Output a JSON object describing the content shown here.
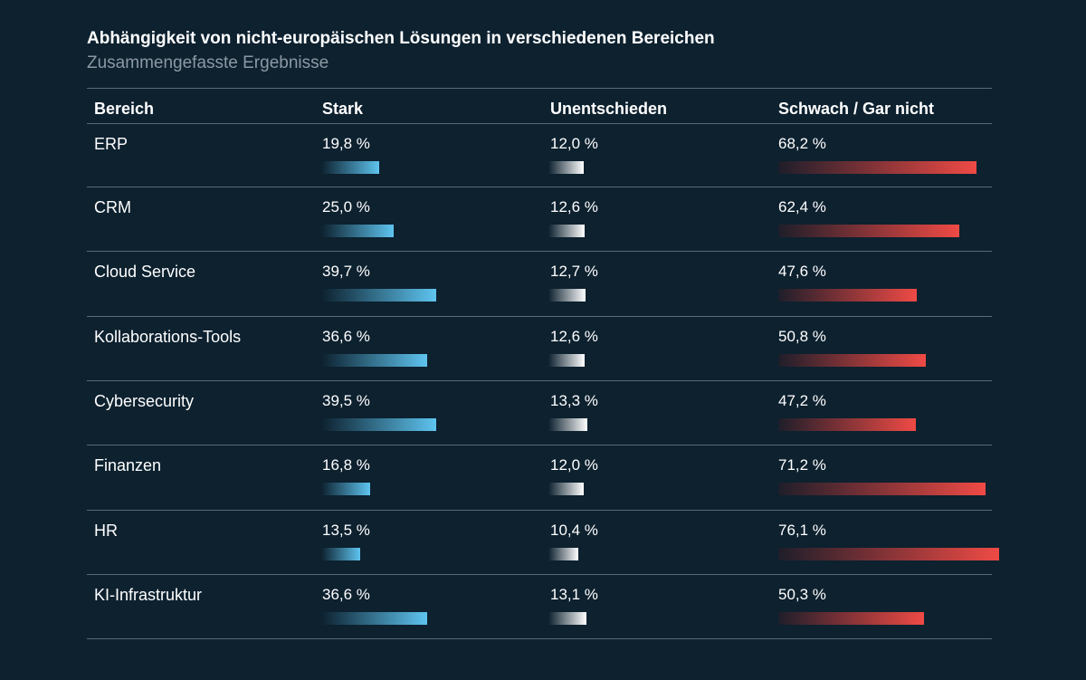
{
  "title": "Abhängigkeit von nicht-europäischen Lösungen in verschiedenen Bereichen",
  "subtitle": "Zusammengefasste Ergebnisse",
  "columns": {
    "category": "Bereich",
    "stark": "Stark",
    "unentschieden": "Unentschieden",
    "schwach": "Schwach / Gar nicht"
  },
  "colors": {
    "background": "#0d212f",
    "stark": "#5ec4ef",
    "unentschieden": "#ffffff",
    "schwach": "#ef4a45",
    "subtitle": "#8c98a3",
    "rule": "#5a6a77"
  },
  "chart_data": {
    "type": "table",
    "title": "Abhängigkeit von nicht-europäischen Lösungen in verschiedenen Bereichen",
    "subtitle": "Zusammengefasste Ergebnisse",
    "categories": [
      "ERP",
      "CRM",
      "Cloud Service",
      "Kollaborations-Tools",
      "Cybersecurity",
      "Finanzen",
      "HR",
      "KI-Infrastruktur"
    ],
    "series": [
      {
        "name": "Stark",
        "values": [
          19.8,
          25.0,
          39.7,
          36.6,
          39.5,
          16.8,
          13.5,
          36.6
        ],
        "labels": [
          "19,8 %",
          "25,0 %",
          "39,7 %",
          "36,6 %",
          "39,5 %",
          "16,8 %",
          "13,5 %",
          "36,6 %"
        ]
      },
      {
        "name": "Unentschieden",
        "values": [
          12.0,
          12.6,
          12.7,
          12.6,
          13.3,
          12.0,
          10.4,
          13.1
        ],
        "labels": [
          "12,0 %",
          "12,6 %",
          "12,7 %",
          "12,6 %",
          "13,3 %",
          "12,0 %",
          "10,4 %",
          "13,1 %"
        ]
      },
      {
        "name": "Schwach / Gar nicht",
        "values": [
          68.2,
          62.4,
          47.6,
          50.8,
          47.2,
          71.2,
          76.1,
          50.3
        ],
        "labels": [
          "68,2 %",
          "62,4 %",
          "47,6 %",
          "50,8 %",
          "47,2 %",
          "71,2 %",
          "76,1 %",
          "50,3 %"
        ]
      }
    ]
  }
}
